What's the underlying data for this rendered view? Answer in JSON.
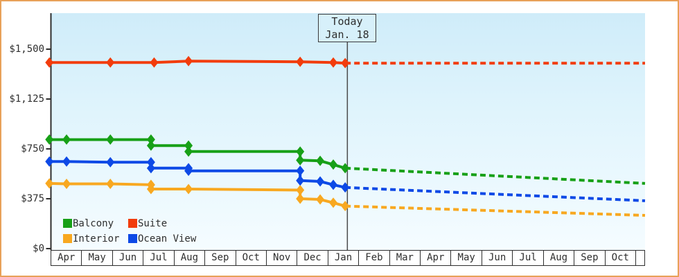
{
  "chart_data": {
    "type": "line",
    "description": "Cruise cabin price history with dotted future projection",
    "x_axis": {
      "months": [
        "Apr",
        "May",
        "Jun",
        "Jul",
        "Aug",
        "Sep",
        "Oct",
        "Nov",
        "Dec",
        "Jan",
        "Feb",
        "Mar",
        "Apr",
        "May",
        "Jun",
        "Jul",
        "Aug",
        "Sep",
        "Oct"
      ],
      "unit": "month"
    },
    "y_axis": {
      "ticks": [
        {
          "value": 0,
          "label": "$0"
        },
        {
          "value": 375,
          "label": "$375"
        },
        {
          "value": 750,
          "label": "$750"
        },
        {
          "value": 1125,
          "label": "$1,125"
        },
        {
          "value": 1500,
          "label": "$1,500"
        }
      ],
      "min": 0,
      "max_visible": 1770,
      "grid": false
    },
    "today": {
      "line1": "Today",
      "line2": "Jan. 18",
      "t": 9.48
    },
    "series": [
      {
        "name": "Balcony",
        "color": "#17a017",
        "history": [
          [
            -0.05,
            820
          ],
          [
            0.5,
            820
          ],
          [
            1.9,
            820
          ],
          [
            3.2,
            820
          ],
          [
            3.2,
            775
          ],
          [
            4.4,
            775
          ],
          [
            4.4,
            730
          ],
          [
            7.97,
            730
          ],
          [
            7.97,
            665
          ],
          [
            8.61,
            660
          ],
          [
            9.03,
            632
          ],
          [
            9.41,
            605
          ]
        ],
        "projection": [
          [
            9.41,
            605
          ],
          [
            19,
            490
          ]
        ]
      },
      {
        "name": "Suite",
        "color": "#f23c0c",
        "history": [
          [
            -0.05,
            1400
          ],
          [
            1.9,
            1400
          ],
          [
            3.3,
            1400
          ],
          [
            4.4,
            1410
          ],
          [
            7.97,
            1405
          ],
          [
            9.03,
            1400
          ],
          [
            9.41,
            1395
          ]
        ],
        "projection": [
          [
            9.41,
            1395
          ],
          [
            19,
            1395
          ]
        ]
      },
      {
        "name": "Interior",
        "color": "#f8a820",
        "history": [
          [
            -0.05,
            490
          ],
          [
            0.5,
            487
          ],
          [
            1.9,
            487
          ],
          [
            3.2,
            480
          ],
          [
            3.2,
            448
          ],
          [
            4.4,
            448
          ],
          [
            7.97,
            440
          ],
          [
            7.97,
            375
          ],
          [
            8.61,
            370
          ],
          [
            9.03,
            345
          ],
          [
            9.41,
            320
          ]
        ],
        "projection": [
          [
            9.41,
            320
          ],
          [
            19,
            250
          ]
        ]
      },
      {
        "name": "Ocean View",
        "color": "#0d49e6",
        "history": [
          [
            -0.05,
            655
          ],
          [
            0.5,
            655
          ],
          [
            1.9,
            650
          ],
          [
            3.2,
            650
          ],
          [
            3.2,
            605
          ],
          [
            4.4,
            605
          ],
          [
            4.4,
            585
          ],
          [
            7.97,
            585
          ],
          [
            7.97,
            512
          ],
          [
            8.61,
            505
          ],
          [
            9.03,
            480
          ],
          [
            9.41,
            460
          ]
        ],
        "projection": [
          [
            9.41,
            460
          ],
          [
            19,
            360
          ]
        ]
      }
    ],
    "legend": {
      "position": "bottom-left-inside",
      "order": [
        "Balcony",
        "Suite",
        "Interior",
        "Ocean View"
      ]
    },
    "colors": {
      "frame_border": "#e8a159",
      "plot_bg_top": "#cfecf9",
      "plot_bg_bottom": "#f5fcff",
      "axis": "#2e2e2e",
      "today_line": "#4a4a4a"
    }
  }
}
